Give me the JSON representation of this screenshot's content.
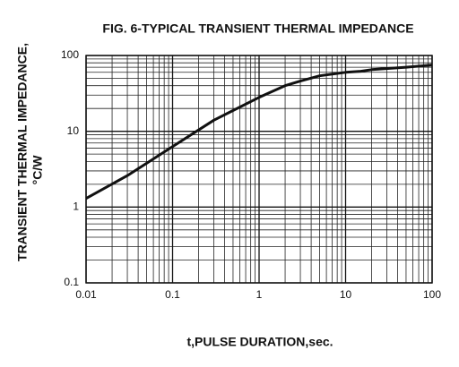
{
  "chart_data": {
    "type": "line",
    "title": "FIG. 6-TYPICAL TRANSIENT THERMAL IMPEDANCE",
    "xlabel": "t,PULSE DURATION,sec.",
    "ylabel": [
      "TRANSIENT THERMAL IMPEDANCE,",
      "°C/W"
    ],
    "xscale": "log",
    "yscale": "log",
    "xlim": [
      0.01,
      100
    ],
    "ylim": [
      0.1,
      100
    ],
    "xticks": [
      0.01,
      0.1,
      1,
      10,
      100
    ],
    "yticks": [
      0.1,
      1,
      10,
      100
    ],
    "xminorticks": [
      0.02,
      0.03,
      0.04,
      0.05,
      0.06,
      0.07,
      0.08,
      0.09,
      0.2,
      0.3,
      0.4,
      0.5,
      0.6,
      0.7,
      0.8,
      0.9,
      2,
      3,
      4,
      5,
      6,
      7,
      8,
      9,
      20,
      30,
      40,
      50,
      60,
      70,
      80,
      90
    ],
    "yminorticks": [
      0.2,
      0.3,
      0.4,
      0.5,
      0.6,
      0.7,
      0.8,
      0.9,
      2,
      3,
      4,
      5,
      6,
      7,
      8,
      9,
      20,
      30,
      40,
      50,
      60,
      70,
      80,
      90
    ],
    "grid": true,
    "series": [
      {
        "color": "#111111",
        "x": [
          0.01,
          0.03,
          0.1,
          0.3,
          1,
          2,
          3,
          5,
          10,
          15,
          20,
          50,
          100
        ],
        "values": [
          1.3,
          2.6,
          6.3,
          14,
          28,
          40,
          46,
          54,
          60,
          62,
          65,
          70,
          75
        ]
      }
    ]
  }
}
